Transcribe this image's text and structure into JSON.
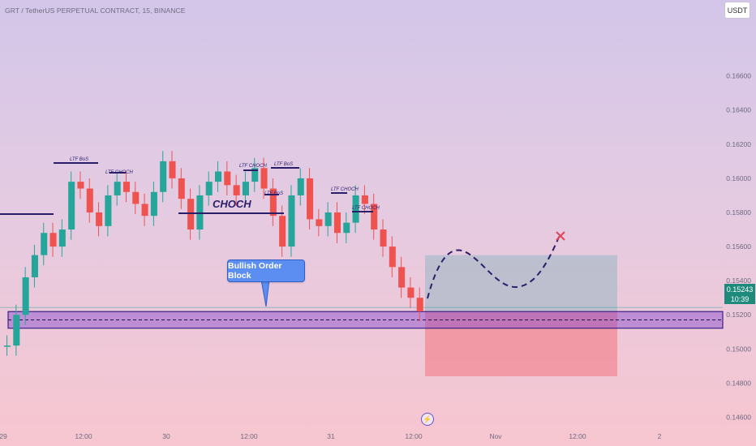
{
  "header": {
    "symbol_title": "GRT / TetherUS PERPETUAL CONTRACT, 15, BINANCE",
    "currency": "USDT"
  },
  "price_tag": {
    "price": "0.15243",
    "countdown": "10:39"
  },
  "chart_data": {
    "type": "candlestick",
    "y_axis": {
      "range": [
        0.1455,
        0.1695
      ],
      "ticks": [
        "0.16600",
        "0.16400",
        "0.16200",
        "0.16000",
        "0.15800",
        "0.15600",
        "0.15400",
        "0.15200",
        "0.15000",
        "0.14800",
        "0.14600"
      ]
    },
    "x_axis": {
      "ticks": [
        "29",
        "12:00",
        "30",
        "12:00",
        "31",
        "12:00",
        "Nov",
        "12:00",
        "2"
      ]
    },
    "ohlc_path": [
      0.1502,
      0.152,
      0.1542,
      0.1555,
      0.1568,
      0.156,
      0.157,
      0.1598,
      0.1594,
      0.158,
      0.1572,
      0.159,
      0.1598,
      0.1592,
      0.1585,
      0.1578,
      0.1592,
      0.161,
      0.16,
      0.1588,
      0.157,
      0.159,
      0.1598,
      0.1604,
      0.1596,
      0.159,
      0.1598,
      0.1606,
      0.1594,
      0.1578,
      0.156,
      0.159,
      0.16,
      0.1576,
      0.1572,
      0.158,
      0.1568,
      0.1574,
      0.159,
      0.1585,
      0.157,
      0.156,
      0.1548,
      0.1536,
      0.153,
      0.1522
    ],
    "annotations": {
      "choch_label": "CHOCH",
      "ltf_labels": [
        "LTF BoS",
        "LTF CHOCH",
        "LTF CHOCH",
        "LTF BoS",
        "LTF BoS",
        "LTF CHOCH",
        "LTF CHOCH"
      ],
      "order_block_label": "Bullish Order Block",
      "order_block_zone": [
        0.1515,
        0.152
      ],
      "current_price": 0.15243,
      "target_box": [
        0.1522,
        0.1555
      ],
      "stop_box": [
        0.1484,
        0.1522
      ]
    },
    "grid": false,
    "colors": {
      "up": "#26a69a",
      "down": "#ef5350",
      "order_block": "#7b3fd0",
      "target": "#9fb8c4",
      "stop": "#f28b95",
      "projection": "#2a1e6b",
      "x_mark": "#e0455a"
    }
  }
}
